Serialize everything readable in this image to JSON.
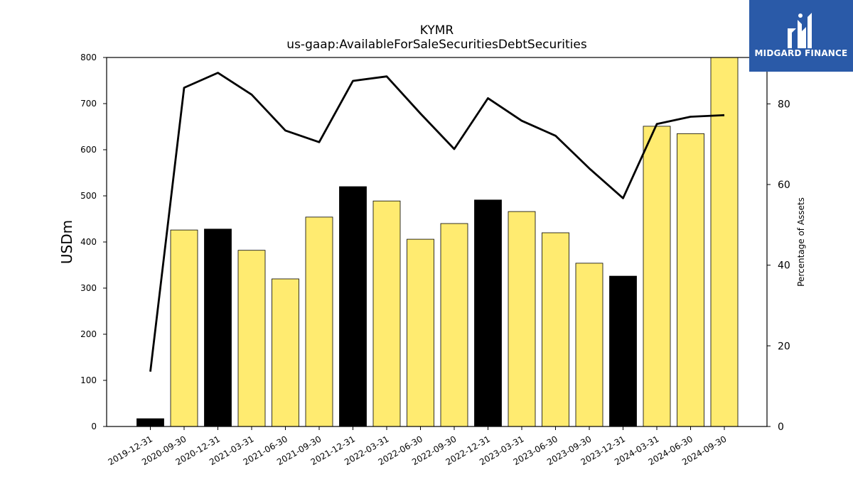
{
  "chart_data": {
    "type": "bar",
    "title": "KYMR",
    "subtitle": "us-gaap:AvailableForSaleSecuritiesDebtSecurities",
    "ylabel": "USDm",
    "ylabel_right": "Percentage of Assets",
    "ylim": [
      0,
      800
    ],
    "ylim_right": [
      0,
      91.5
    ],
    "yticks": [
      0,
      100,
      200,
      300,
      400,
      500,
      600,
      700,
      800
    ],
    "yticks_right": [
      0,
      20,
      40,
      60,
      80
    ],
    "grid": false,
    "categories": [
      "2019-12-31",
      "2020-09-30",
      "2020-12-31",
      "2021-03-31",
      "2021-06-30",
      "2021-09-30",
      "2021-12-31",
      "2022-03-31",
      "2022-06-30",
      "2022-09-30",
      "2022-12-31",
      "2023-03-31",
      "2023-06-30",
      "2023-09-30",
      "2023-12-31",
      "2024-03-31",
      "2024-06-30",
      "2024-09-30"
    ],
    "series": [
      {
        "axis": "left",
        "kind": "bar",
        "values": [
          17,
          426,
          428,
          382,
          320,
          454,
          520,
          489,
          406,
          440,
          491,
          466,
          420,
          354,
          326,
          651,
          635,
          800
        ],
        "colors": [
          "#000000",
          "#ffeb70",
          "#000000",
          "#ffeb70",
          "#ffeb70",
          "#ffeb70",
          "#000000",
          "#ffeb70",
          "#ffeb70",
          "#ffeb70",
          "#000000",
          "#ffeb70",
          "#ffeb70",
          "#ffeb70",
          "#000000",
          "#ffeb70",
          "#ffeb70",
          "#ffeb70"
        ]
      },
      {
        "axis": "right",
        "kind": "line",
        "color": "#000000",
        "values": [
          13.6,
          84.0,
          87.7,
          82.3,
          73.4,
          70.5,
          85.7,
          86.8,
          77.6,
          68.8,
          81.4,
          75.8,
          72.1,
          64.0,
          56.6,
          75.0,
          76.8,
          77.2
        ]
      }
    ]
  },
  "logo": {
    "text": "MIDGARD FINANCE",
    "background": "#2a5aa8"
  }
}
